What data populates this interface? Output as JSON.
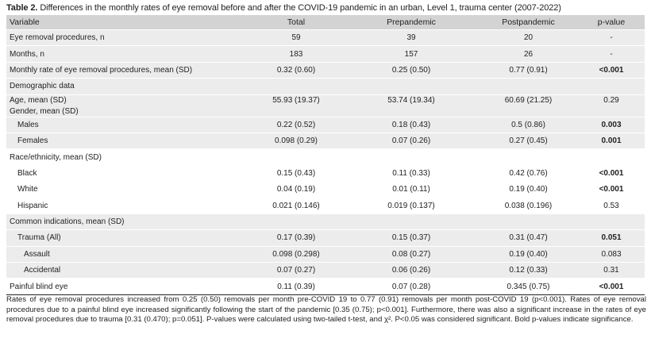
{
  "title": {
    "label": "Table 2.",
    "text": "Differences in the monthly rates of eye removal before and after the COVID-19 pandemic in an urban, Level 1, trauma center (2007-2022)"
  },
  "table": {
    "headers": [
      "Variable",
      "Total",
      "Prepandemic",
      "Postpandemic",
      "p-value"
    ],
    "rows": [
      {
        "cells": [
          "Eye removal procedures, n",
          "59",
          "39",
          "20",
          "-"
        ],
        "indent": 0,
        "shade": true
      },
      {
        "cells": [
          "Months, n",
          "183",
          "157",
          "26",
          "-"
        ],
        "indent": 0,
        "shade": true
      },
      {
        "cells": [
          "Monthly rate of eye removal procedures, mean (SD)",
          "0.32 (0.60)",
          "0.25 (0.50)",
          "0.77 (0.91)",
          "<0.001"
        ],
        "indent": 0,
        "shade": true,
        "bold_p": true
      },
      {
        "cells": [
          "Demographic data",
          "",
          "",
          "",
          ""
        ],
        "indent": 0,
        "shade": true
      },
      {
        "cells": [
          "Age, mean (SD)",
          "55.93 (19.37)",
          "53.74 (19.34)",
          "60.69 (21.25)",
          "0.29"
        ],
        "indent": 0,
        "shade": true,
        "tight": true
      },
      {
        "cells": [
          "Gender, mean (SD)",
          "",
          "",
          "",
          ""
        ],
        "indent": 0,
        "shade": true,
        "tight": true
      },
      {
        "cells": [
          "Males",
          "0.22 (0.52)",
          "0.18 (0.43)",
          "0.5 (0.86)",
          "0.003"
        ],
        "indent": 1,
        "shade": true,
        "bold_p": true
      },
      {
        "cells": [
          "Females",
          "0.098 (0.29)",
          "0.07 (0.26)",
          "0.27 (0.45)",
          "0.001"
        ],
        "indent": 1,
        "shade": true,
        "bold_p": true
      },
      {
        "cells": [
          "Race/ethnicity, mean (SD)",
          "",
          "",
          "",
          ""
        ],
        "indent": 0,
        "shade": false
      },
      {
        "cells": [
          "Black",
          "0.15 (0.43)",
          "0.11 (0.33)",
          "0.42 (0.76)",
          "<0.001"
        ],
        "indent": 1,
        "shade": false,
        "bold_p": true
      },
      {
        "cells": [
          "White",
          "0.04 (0.19)",
          "0.01 (0.11)",
          "0.19 (0.40)",
          "<0.001"
        ],
        "indent": 1,
        "shade": false,
        "bold_p": true
      },
      {
        "cells": [
          "Hispanic",
          "0.021 (0.146)",
          "0.019 (0.137)",
          "0.038 (0.196)",
          "0.53"
        ],
        "indent": 1,
        "shade": false
      },
      {
        "cells": [
          "Common indications, mean (SD)",
          "",
          "",
          "",
          ""
        ],
        "indent": 0,
        "shade": true
      },
      {
        "cells": [
          "Trauma (All)",
          "0.17 (0.39)",
          "0.15 (0.37)",
          "0.31 (0.47)",
          "0.051"
        ],
        "indent": 1,
        "shade": true,
        "bold_p": true
      },
      {
        "cells": [
          "Assault",
          "0.098 (0.298)",
          "0.08 (0.27)",
          "0.19 (0.40)",
          "0.083"
        ],
        "indent": 2,
        "shade": true
      },
      {
        "cells": [
          "Accidental",
          "0.07 (0.27)",
          "0.06 (0.26)",
          "0.12 (0.33)",
          "0.31"
        ],
        "indent": 2,
        "shade": true
      },
      {
        "cells": [
          "Painful blind eye",
          "0.11 (0.39)",
          "0.07 (0.28)",
          "0.345 (0.75)",
          "<0.001"
        ],
        "indent": 0,
        "shade": false,
        "bold_p": true,
        "last": true
      }
    ]
  },
  "footnote": "Rates of eye removal procedures increased from 0.25 (0.50) removals per month pre-COVID 19 to 0.77 (0.91) removals per month post-COVID 19 (p<0.001). Rates of eye removal procedures due to a painful blind eye increased significantly following the start of the pandemic [0.35 (0.75); p<0.001]. Furthermore, there was also a significant increase in the rates of eye removal procedures due to trauma [0.31 (0.470); p=0.051]. P-values were calculated using two-tailed t-test, and χ². P<0.05 was considered significant. Bold p-values indicate significance."
}
